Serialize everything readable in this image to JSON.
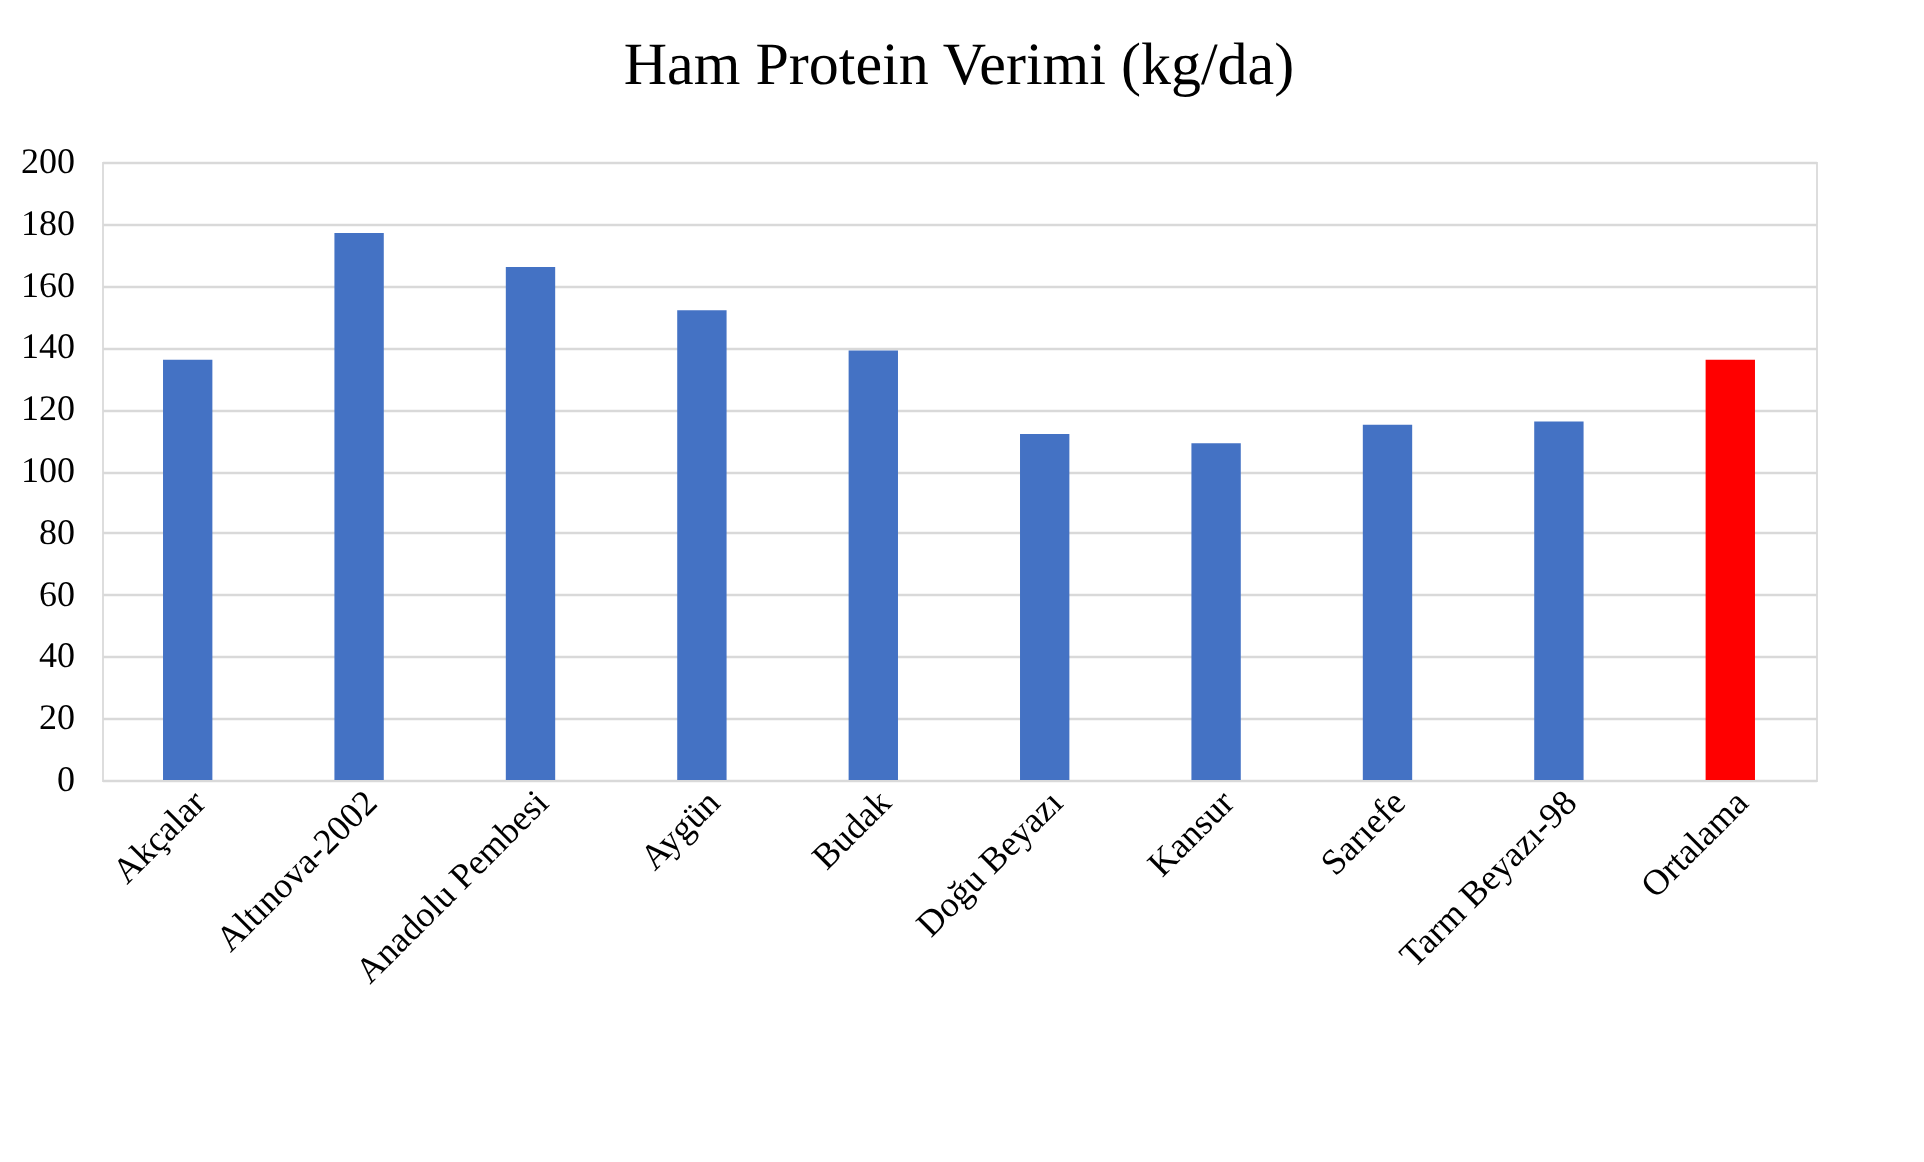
{
  "chart_data": {
    "type": "bar",
    "title": "Ham Protein Verimi (kg/da)",
    "categories": [
      "Akçalar",
      "Altınova-2002",
      "Anadolu Pembesi",
      "Aygün",
      "Budak",
      "Doğu Beyazı",
      "Kansur",
      "Sarıefe",
      "Tarm Beyazı-98",
      "Ortalama"
    ],
    "values": [
      136,
      177,
      166,
      152,
      139,
      112,
      109,
      115,
      116,
      136
    ],
    "colors": [
      "#4472c4",
      "#4472c4",
      "#4472c4",
      "#4472c4",
      "#4472c4",
      "#4472c4",
      "#4472c4",
      "#4472c4",
      "#4472c4",
      "#ff0000"
    ],
    "ylim": [
      0,
      200
    ],
    "yticks": [
      0,
      20,
      40,
      60,
      80,
      100,
      120,
      140,
      160,
      180,
      200
    ],
    "grid": "y",
    "legend": false
  }
}
